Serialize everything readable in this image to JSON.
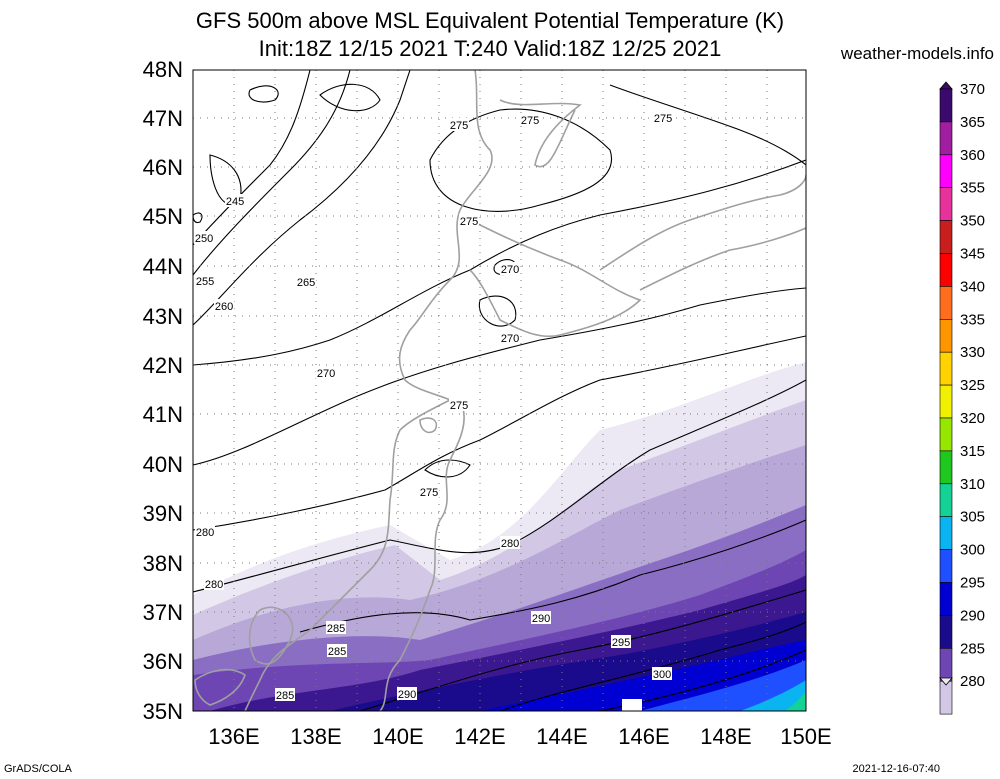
{
  "header": {
    "title_line1": "GFS 500m above MSL Equivalent Potential Temperature (K)",
    "title_line2": "Init:18Z 12/15 2021 T:240 Valid:18Z 12/25 2021",
    "site": "weather-models.info"
  },
  "axes": {
    "lat_labels": [
      "48N",
      "47N",
      "46N",
      "45N",
      "44N",
      "43N",
      "42N",
      "41N",
      "40N",
      "39N",
      "38N",
      "37N",
      "36N",
      "35N"
    ],
    "lon_labels": [
      "136E",
      "138E",
      "140E",
      "142E",
      "144E",
      "146E",
      "148E",
      "150E"
    ]
  },
  "contour_labels": [
    "245",
    "250",
    "255",
    "260",
    "265",
    "270",
    "270",
    "270",
    "275",
    "275",
    "275",
    "275",
    "275",
    "275",
    "280",
    "280",
    "280",
    "285",
    "285",
    "285",
    "290",
    "290",
    "295",
    "300"
  ],
  "colorbar": {
    "values": [
      "370",
      "365",
      "360",
      "355",
      "350",
      "345",
      "340",
      "335",
      "330",
      "325",
      "320",
      "315",
      "310",
      "305",
      "300",
      "295",
      "290",
      "285",
      "280"
    ],
    "colors": [
      "#3c0a6e",
      "#a01ea0",
      "#ff00ff",
      "#e6329a",
      "#c81e1e",
      "#ff0000",
      "#ff6e1e",
      "#ff9600",
      "#ffd200",
      "#f0f000",
      "#96e600",
      "#1ec81e",
      "#14d296",
      "#0ab4f0",
      "#1e50ff",
      "#0000d2",
      "#1a0a8c",
      "#6e46b4",
      "#d2c8e6"
    ]
  },
  "footer": {
    "left": "GrADS/COLA",
    "right": "2021-12-16-07:40"
  }
}
